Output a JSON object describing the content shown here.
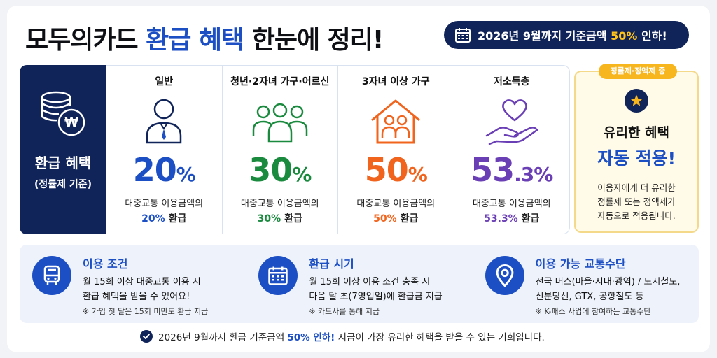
{
  "header": {
    "title_pre": "모두의카드",
    "title_accent": "환급 혜택",
    "title_post": "한눈에 정리!",
    "deadline_pre": "2026년 9월까지 기준금액",
    "deadline_highlight": "50%",
    "deadline_post": "인하!"
  },
  "benefits": {
    "label": "환급 혜택",
    "sublabel": "(정률제 기준)",
    "columns": [
      {
        "category": "일반",
        "percent_value": "20",
        "percent_unit": "%",
        "desc": "대중교통 이용금액의",
        "desc_value": "20%",
        "desc_suffix": "환급",
        "color": "#1d4fc4",
        "icon": "person-icon"
      },
      {
        "category": "청년·2자녀 가구·어르신",
        "percent_value": "30",
        "percent_unit": "%",
        "desc": "대중교통 이용금액의",
        "desc_value": "30%",
        "desc_suffix": "환급",
        "color": "#1a8a3e",
        "icon": "family-icon"
      },
      {
        "category": "3자녀 이상 가구",
        "percent_value": "50",
        "percent_unit": "%",
        "desc": "대중교통 이용금액의",
        "desc_value": "50%",
        "desc_suffix": "환급",
        "color": "#f0641e",
        "icon": "house-family-icon"
      },
      {
        "category": "저소득층",
        "percent_value": "53",
        "percent_unit": ".3%",
        "desc": "대중교통 이용금액의",
        "desc_value": "53.3%",
        "desc_suffix": "환급",
        "color": "#6a3fb5",
        "icon": "heart-hand-icon"
      }
    ]
  },
  "auto_apply": {
    "badge": "정률제·정액제 중",
    "title1": "유리한 혜택",
    "title2": "자동 적용!",
    "desc_l1": "이용자에게 더 유리한",
    "desc_l2": "정률제 또는 정액제가",
    "desc_l3": "자동으로 적용됩니다."
  },
  "info": [
    {
      "title": "이용 조건",
      "line1": "월 15회 이상 대중교통 이용 시",
      "line2": "환급 혜택을 받을 수 있어요!",
      "note": "※ 가입 첫 달은 15회 미만도 환급 지급",
      "icon": "bus-icon"
    },
    {
      "title": "환급 시기",
      "line1": "월 15회 이상 이용 조건 충족 시",
      "line2": "다음 달 초(7영업일)에 환급금 지급",
      "note": "※ 카드사를 통해 지급",
      "icon": "calendar-icon"
    },
    {
      "title": "이용 가능 교통수단",
      "line1": "전국 버스(마을·시내·광역) / 도시철도,",
      "line2": "신분당선, GTX, 공항철도 등",
      "note": "※ K-패스 사업에 참여하는 교통수단",
      "icon": "location-pin-icon"
    }
  ],
  "footer": {
    "pre": "2026년 9월까지 환급 기준금액",
    "highlight": "50% 인하!",
    "post": "지금이 가장 유리한 혜택을 받을 수 있는 기회입니다."
  },
  "colors": {
    "navy": "#10245a",
    "blue": "#1d4fc4",
    "green": "#1a8a3e",
    "orange": "#f0641e",
    "purple": "#6a3fb5",
    "gold": "#f7b51e"
  }
}
